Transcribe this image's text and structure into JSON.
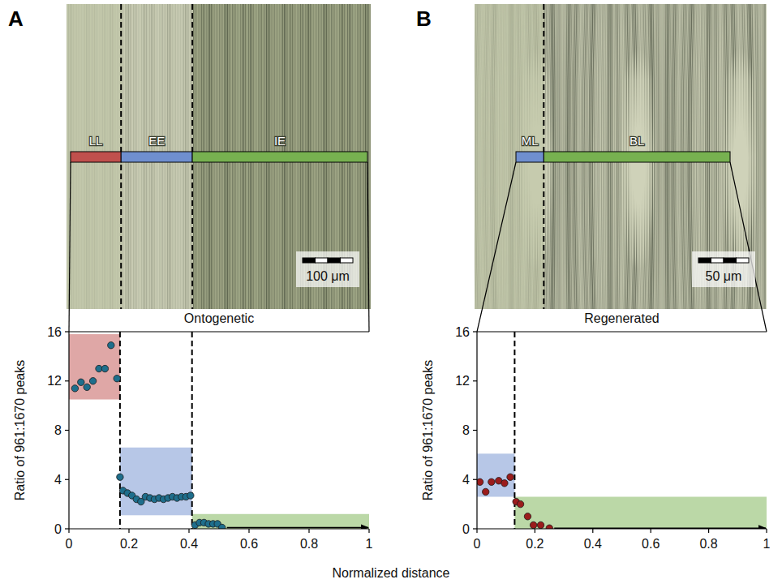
{
  "chart_data": [
    {
      "type": "scatter",
      "panel": "A",
      "title": "Ontogenetic",
      "y_label": "Ratio of 961:1670 peaks",
      "scale_bar": "100 μm",
      "color": "#1e6e8c",
      "marker": "circle",
      "xlim": [
        0,
        1
      ],
      "xticks": [
        0,
        0.2,
        0.4,
        0.6,
        0.8,
        1
      ],
      "ylim": [
        0,
        16
      ],
      "yticks": [
        0,
        4,
        8,
        12,
        16
      ],
      "x": [
        0.02,
        0.04,
        0.06,
        0.08,
        0.1,
        0.12,
        0.14,
        0.16,
        0.17,
        0.18,
        0.195,
        0.21,
        0.225,
        0.24,
        0.255,
        0.27,
        0.285,
        0.3,
        0.315,
        0.33,
        0.345,
        0.36,
        0.375,
        0.39,
        0.405,
        0.42,
        0.435,
        0.45,
        0.465,
        0.48,
        0.495,
        0.51
      ],
      "values": [
        11.4,
        11.9,
        11.5,
        12.0,
        13.0,
        13.0,
        14.9,
        12.2,
        4.2,
        3.1,
        2.9,
        2.7,
        2.4,
        2.2,
        2.6,
        2.5,
        2.4,
        2.5,
        2.4,
        2.5,
        2.6,
        2.5,
        2.6,
        2.6,
        2.7,
        0.3,
        0.5,
        0.5,
        0.4,
        0.4,
        0.4,
        0.1
      ],
      "regions": [
        {
          "label": "LL",
          "x": [
            0,
            0.17
          ],
          "y": [
            10.5,
            15.8
          ],
          "color": "#c0504d"
        },
        {
          "label": "EE",
          "x": [
            0.17,
            0.41
          ],
          "y": [
            1.1,
            6.6
          ],
          "color": "#6f8fcf"
        },
        {
          "label": "IE",
          "x": [
            0.41,
            1
          ],
          "y": [
            0,
            1.2
          ],
          "color": "#77b150"
        }
      ]
    },
    {
      "type": "scatter",
      "panel": "B",
      "title": "Regenerated",
      "y_label": "Ratio of 961:1670 peaks",
      "scale_bar": "50 μm",
      "color": "#9b1c1c",
      "marker": "circle",
      "xlim": [
        0,
        1
      ],
      "xticks": [
        0,
        0.2,
        0.4,
        0.6,
        0.8,
        1
      ],
      "ylim": [
        0,
        16
      ],
      "yticks": [
        0,
        4,
        8,
        12,
        16
      ],
      "x": [
        0.01,
        0.03,
        0.05,
        0.075,
        0.095,
        0.115,
        0.135,
        0.15,
        0.175,
        0.195,
        0.22,
        0.25
      ],
      "values": [
        3.8,
        3.0,
        3.8,
        3.9,
        3.7,
        4.2,
        2.2,
        2.0,
        1.0,
        0.3,
        0.3,
        0.05
      ],
      "regions": [
        {
          "label": "ML",
          "x": [
            0,
            0.13
          ],
          "y": [
            2.6,
            6.1
          ],
          "color": "#6f8fcf"
        },
        {
          "label": "BL",
          "x": [
            0.13,
            1
          ],
          "y": [
            0,
            2.6
          ],
          "color": "#77b150"
        }
      ]
    }
  ],
  "x_label": "Normalized distance"
}
